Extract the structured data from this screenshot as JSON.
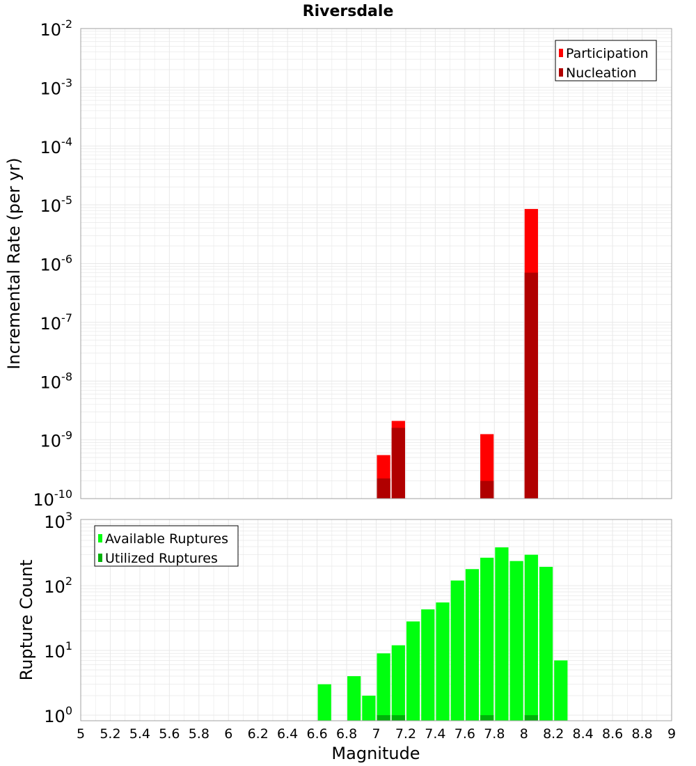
{
  "title": "Riversdale",
  "colors": {
    "participation": "#ff0000",
    "nucleation": "#b00000",
    "available": "#00ff0f",
    "utilized": "#00b20a",
    "grid": "#e8e8e8"
  },
  "chart_data": [
    {
      "type": "bar",
      "title": "Riversdale",
      "ylabel": "Incremental Rate (per yr)",
      "xlabel": "",
      "xlim": [
        5,
        9
      ],
      "ylim": [
        1e-10,
        0.01
      ],
      "yscale": "log",
      "ytick_exponents": [
        "-10",
        "-9",
        "-8",
        "-7",
        "-6",
        "-5",
        "-4",
        "-3",
        "-2"
      ],
      "legend": {
        "position": "top-right",
        "entries": [
          "Participation",
          "Nucleation"
        ]
      },
      "series": [
        {
          "name": "Participation",
          "x": [
            7.05,
            7.15,
            7.75,
            8.05
          ],
          "values": [
            5.5e-10,
            2.1e-09,
            1.25e-09,
            8.5e-06
          ]
        },
        {
          "name": "Nucleation",
          "x": [
            7.05,
            7.15,
            7.75,
            8.05
          ],
          "values": [
            2.2e-10,
            1.6e-09,
            2e-10,
            7e-07
          ]
        }
      ]
    },
    {
      "type": "bar",
      "ylabel": "Rupture Count",
      "xlabel": "Magnitude",
      "xlim": [
        5,
        9
      ],
      "ylim": [
        0.8,
        1000
      ],
      "yscale": "log",
      "ytick_exponents": [
        "0",
        "1",
        "2",
        "3"
      ],
      "xticks": [
        "5",
        "5.2",
        "5.4",
        "5.6",
        "5.8",
        "6",
        "6.2",
        "6.4",
        "6.6",
        "6.8",
        "7",
        "7.2",
        "7.4",
        "7.6",
        "7.8",
        "8",
        "8.2",
        "8.4",
        "8.6",
        "8.8",
        "9"
      ],
      "legend": {
        "position": "top-left",
        "entries": [
          "Available Ruptures",
          "Utilized Ruptures"
        ]
      },
      "series": [
        {
          "name": "Available Ruptures",
          "x": [
            6.65,
            6.85,
            6.95,
            7.05,
            7.15,
            7.25,
            7.35,
            7.45,
            7.55,
            7.65,
            7.75,
            7.85,
            7.95,
            8.05,
            8.15,
            8.25
          ],
          "values": [
            3,
            4,
            2,
            9,
            12,
            28,
            43,
            55,
            120,
            180,
            270,
            390,
            240,
            300,
            195,
            7
          ]
        },
        {
          "name": "Utilized Ruptures",
          "x": [
            7.05,
            7.15,
            7.75,
            8.05
          ],
          "values": [
            1,
            1,
            1,
            1
          ]
        }
      ]
    }
  ]
}
